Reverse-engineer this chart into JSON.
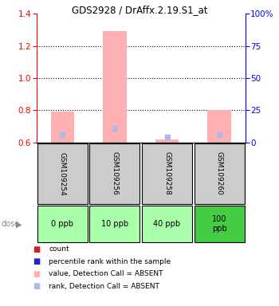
{
  "title": "GDS2928 / DrAffx.2.19.S1_at",
  "samples": [
    "GSM109254",
    "GSM109256",
    "GSM109258",
    "GSM109260"
  ],
  "doses": [
    "0 ppb",
    "10 ppb",
    "40 ppb",
    "100\nppb"
  ],
  "dose_colors": [
    "#aaffaa",
    "#aaffaa",
    "#aaffaa",
    "#44cc44"
  ],
  "bar_values": [
    0.79,
    1.29,
    0.62,
    0.8
  ],
  "bar_base": 0.6,
  "rank_values": [
    0.645,
    0.685,
    0.635,
    0.645
  ],
  "ylim_left": [
    0.6,
    1.4
  ],
  "ylim_right": [
    0,
    100
  ],
  "yticks_left": [
    0.6,
    0.8,
    1.0,
    1.2,
    1.4
  ],
  "yticks_right": [
    0,
    25,
    50,
    75,
    100
  ],
  "bar_color": "#ffb0b0",
  "rank_color": "#b0b8e8",
  "legend_items": [
    {
      "color": "#cc2222",
      "label": "count"
    },
    {
      "color": "#2222cc",
      "label": "percentile rank within the sample"
    },
    {
      "color": "#ffb0b0",
      "label": "value, Detection Call = ABSENT"
    },
    {
      "color": "#b0b8e8",
      "label": "rank, Detection Call = ABSENT"
    }
  ]
}
